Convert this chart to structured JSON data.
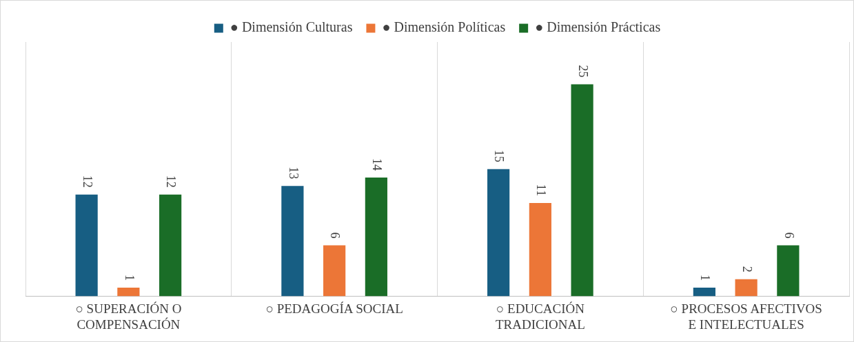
{
  "chart_data": {
    "type": "bar",
    "categories": [
      "○ SUPERACIÓN O COMPENSACIÓN",
      "○ PEDAGOGÍA SOCIAL",
      "○ EDUCACIÓN TRADICIONAL",
      "○ PROCESOS AFECTIVOS E INTELECTUALES"
    ],
    "series": [
      {
        "name": "● Dimensión Culturas",
        "color": "#175e83",
        "values": [
          12,
          13,
          15,
          1
        ]
      },
      {
        "name": "● Dimensión Políticas",
        "color": "#ec7637",
        "values": [
          1,
          6,
          11,
          2
        ]
      },
      {
        "name": "● Dimensión Prácticas",
        "color": "#1a6d27",
        "values": [
          12,
          14,
          25,
          6
        ]
      }
    ],
    "data_labels": true,
    "grid": "x",
    "legend": "top"
  }
}
